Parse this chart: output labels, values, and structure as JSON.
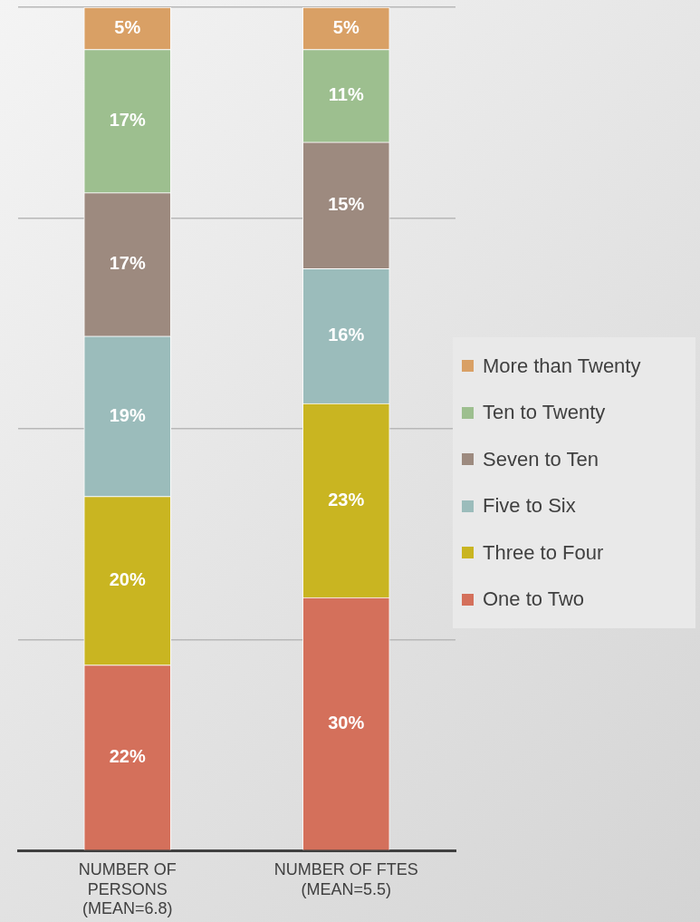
{
  "chart_data": {
    "type": "bar",
    "stacked": true,
    "categories": [
      "NUMBER OF PERSONS (MEAN=6.8)",
      "NUMBER OF FTES (MEAN=5.5)"
    ],
    "ylim": [
      0,
      100
    ],
    "yticks": [
      {
        "value": 0,
        "label": null
      },
      {
        "value": 25,
        "label": null
      },
      {
        "value": 50,
        "label": null
      },
      {
        "value": 75,
        "label": null
      },
      {
        "value": 100,
        "label": null
      }
    ],
    "tick_labels": "x",
    "grid": "y",
    "legend": "right",
    "series": [
      {
        "name": "One to Two",
        "color": "#d4705b",
        "values": [
          22,
          30
        ],
        "value_labels": [
          "22%",
          "30%"
        ]
      },
      {
        "name": "Three to Four",
        "color": "#c9b521",
        "values": [
          20,
          23
        ],
        "value_labels": [
          "20%",
          "23%"
        ]
      },
      {
        "name": "Five to Six",
        "color": "#9bbcbb",
        "values": [
          19,
          16
        ],
        "value_labels": [
          "19%",
          "16%"
        ]
      },
      {
        "name": "Seven to Ten",
        "color": "#9d8a7f",
        "values": [
          17,
          15
        ],
        "value_labels": [
          "17%",
          "15%"
        ]
      },
      {
        "name": "Ten to Twenty",
        "color": "#9dbf8f",
        "values": [
          17,
          11
        ],
        "value_labels": [
          "17%",
          "11%"
        ]
      },
      {
        "name": "More than Twenty",
        "color": "#d9a065",
        "values": [
          5,
          5
        ],
        "value_labels": [
          "5%",
          "5%"
        ]
      }
    ]
  }
}
